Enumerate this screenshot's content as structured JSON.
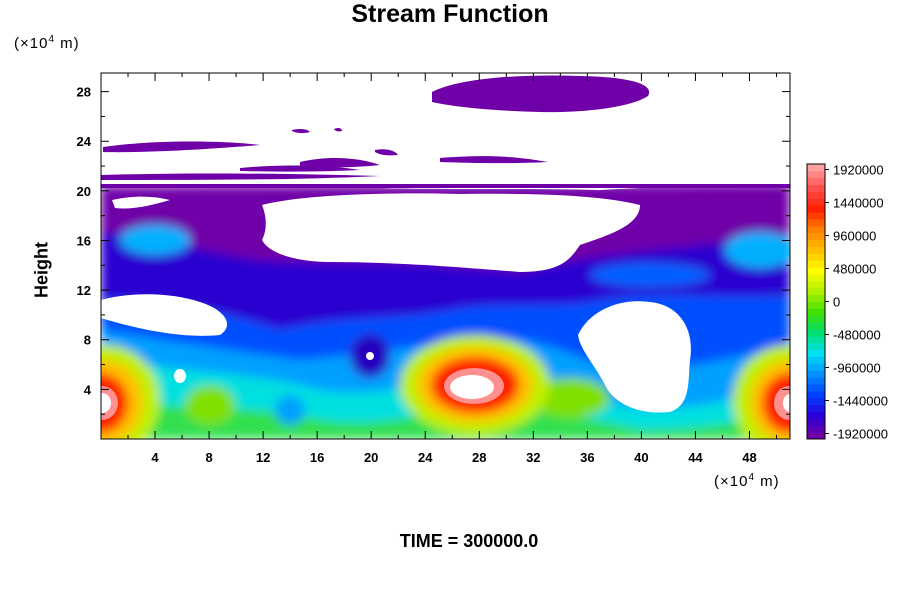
{
  "chart_data": {
    "type": "heatmap",
    "title": "Stream Function",
    "ylabel": "Height",
    "y_unit": {
      "prefix": "(×10",
      "exp": "4",
      "suffix": " m)"
    },
    "x_unit": {
      "prefix": "(×10",
      "exp": "4",
      "suffix": " m)"
    },
    "xlim": [
      0,
      51
    ],
    "ylim": [
      0,
      29.5
    ],
    "x_ticks": [
      "4",
      "8",
      "12",
      "16",
      "20",
      "24",
      "28",
      "32",
      "36",
      "40",
      "44",
      "48"
    ],
    "y_ticks": [
      "4",
      "8",
      "12",
      "16",
      "20",
      "24",
      "28"
    ],
    "colorbar": {
      "min": -2000000,
      "max": 2000000,
      "labels": [
        "1920000",
        "1440000",
        "960000",
        "480000",
        "0",
        "-480000",
        "-960000",
        "-1440000",
        "-1920000"
      ],
      "colors": [
        "#6f00a8",
        "#2800d8",
        "#0040ff",
        "#0090ff",
        "#00e0f0",
        "#00e070",
        "#40e000",
        "#b0f000",
        "#ffff00",
        "#ffc000",
        "#ff8000",
        "#ff2000",
        "#ff5050",
        "#ffa0a0"
      ]
    },
    "grid": false,
    "legend": "right",
    "features": [
      {
        "kind": "high",
        "x": 0.5,
        "y": 3,
        "value": 1900000
      },
      {
        "kind": "high",
        "x": 28,
        "y": 4,
        "value": 2000000
      },
      {
        "kind": "high",
        "x": 51,
        "y": 3,
        "value": 1900000
      },
      {
        "kind": "low",
        "x": 20,
        "y": 7,
        "value": -1920000
      }
    ],
    "time_label": "TIME = 300000.0"
  }
}
